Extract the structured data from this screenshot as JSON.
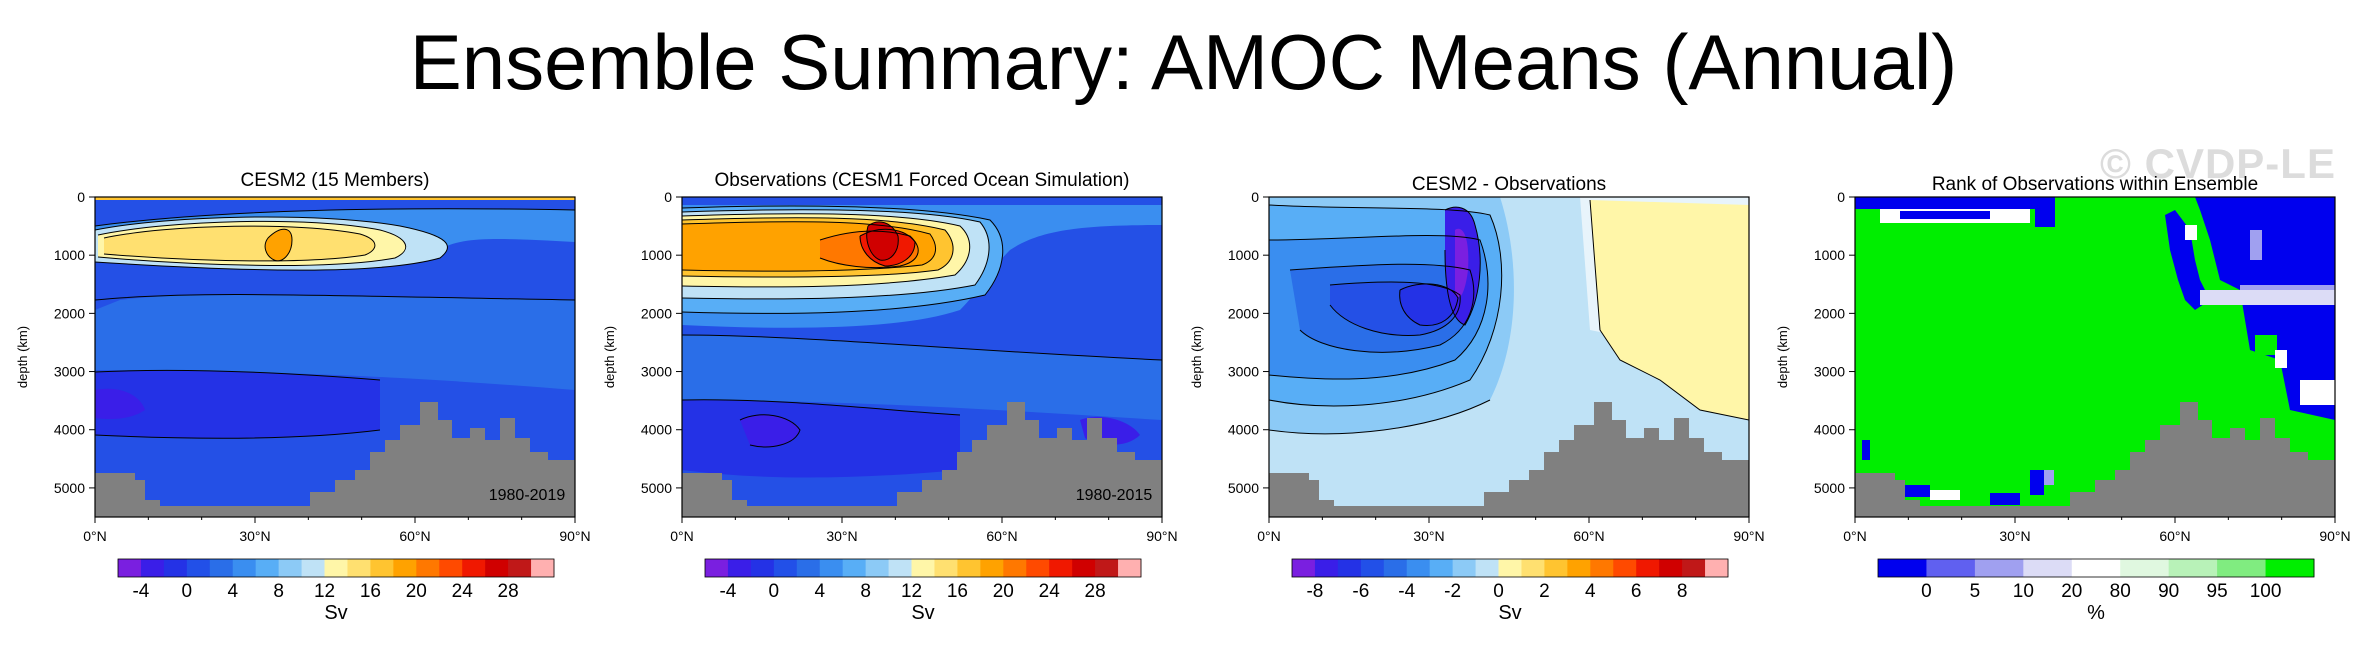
{
  "title": "Ensemble Summary: AMOC Means (Annual)",
  "watermark": "© CVDP-LE",
  "depth_label": "depth (km)",
  "chart_data": [
    {
      "type": "contour",
      "title": "CESM2 (15 Members)",
      "period": "1980-2019",
      "ylabel": "depth (km)",
      "x_ticks": [
        "0°N",
        "30°N",
        "60°N",
        "90°N"
      ],
      "y_ticks": [
        "0",
        "1000",
        "2000",
        "3000",
        "4000",
        "5000"
      ],
      "xlim": [
        0,
        90
      ],
      "ylim": [
        5500,
        0
      ],
      "max_value_sv": 20,
      "max_location": [
        35,
        800
      ],
      "colorbar": {
        "unit": "Sv",
        "labels": [
          "-4",
          "0",
          "4",
          "8",
          "12",
          "16",
          "20",
          "24",
          "28"
        ],
        "colors": [
          "#7a1fe0",
          "#3a1ee8",
          "#2432e6",
          "#2250e8",
          "#2a6ee8",
          "#3a8ef0",
          "#58aef6",
          "#8ccaf6",
          "#bfe2f6",
          "#fff6a8",
          "#ffe070",
          "#ffc430",
          "#ffa200",
          "#ff7800",
          "#ff4a00",
          "#f01800",
          "#d00000",
          "#c01818",
          "#ffb0b0"
        ]
      }
    },
    {
      "type": "contour",
      "title": "Observations (CESM1 Forced Ocean Simulation)",
      "period": "1980-2015",
      "ylabel": "depth (km)",
      "x_ticks": [
        "0°N",
        "30°N",
        "60°N",
        "90°N"
      ],
      "y_ticks": [
        "0",
        "1000",
        "2000",
        "3000",
        "4000",
        "5000"
      ],
      "xlim": [
        0,
        90
      ],
      "ylim": [
        5500,
        0
      ],
      "max_value_sv": 26,
      "max_location": [
        38,
        900
      ],
      "colorbar": {
        "unit": "Sv",
        "labels": [
          "-4",
          "0",
          "4",
          "8",
          "12",
          "16",
          "20",
          "24",
          "28"
        ],
        "colors": [
          "#7a1fe0",
          "#3a1ee8",
          "#2432e6",
          "#2250e8",
          "#2a6ee8",
          "#3a8ef0",
          "#58aef6",
          "#8ccaf6",
          "#bfe2f6",
          "#fff6a8",
          "#ffe070",
          "#ffc430",
          "#ffa200",
          "#ff7800",
          "#ff4a00",
          "#f01800",
          "#d00000",
          "#c01818",
          "#ffb0b0"
        ]
      }
    },
    {
      "type": "contour",
      "title": "CESM2 - Observations",
      "ylabel": "depth (km)",
      "x_ticks": [
        "0°N",
        "30°N",
        "60°N",
        "90°N"
      ],
      "y_ticks": [
        "0",
        "1000",
        "2000",
        "3000",
        "4000",
        "5000"
      ],
      "xlim": [
        0,
        90
      ],
      "ylim": [
        5500,
        0
      ],
      "min_value_sv": -8,
      "min_location": [
        35,
        1800
      ],
      "colorbar": {
        "unit": "Sv",
        "labels": [
          "-8",
          "-6",
          "-4",
          "-2",
          "0",
          "2",
          "4",
          "6",
          "8"
        ],
        "colors": [
          "#7a1fe0",
          "#3a1ee8",
          "#2432e6",
          "#2250e8",
          "#2a6ee8",
          "#3a8ef0",
          "#58aef6",
          "#8ccaf6",
          "#bfe2f6",
          "#fff6a8",
          "#ffe070",
          "#ffc430",
          "#ffa200",
          "#ff7800",
          "#ff4a00",
          "#f01800",
          "#d00000",
          "#c01818",
          "#ffb0b0"
        ]
      }
    },
    {
      "type": "heatmap",
      "title": "Rank of Observations within Ensemble",
      "ylabel": "depth (km)",
      "x_ticks": [
        "0°N",
        "30°N",
        "60°N",
        "90°N"
      ],
      "y_ticks": [
        "0",
        "1000",
        "2000",
        "3000",
        "4000",
        "5000"
      ],
      "xlim": [
        0,
        90
      ],
      "ylim": [
        5500,
        0
      ],
      "colorbar": {
        "unit": "%",
        "labels": [
          "0",
          "5",
          "10",
          "20",
          "80",
          "90",
          "95",
          "100"
        ],
        "colors": [
          "#0000ee",
          "#6060f0",
          "#a0a0f0",
          "#dcdcf6",
          "#ffffff",
          "#e0f8e0",
          "#b8f2b8",
          "#80ec80",
          "#00ee00"
        ]
      }
    }
  ]
}
